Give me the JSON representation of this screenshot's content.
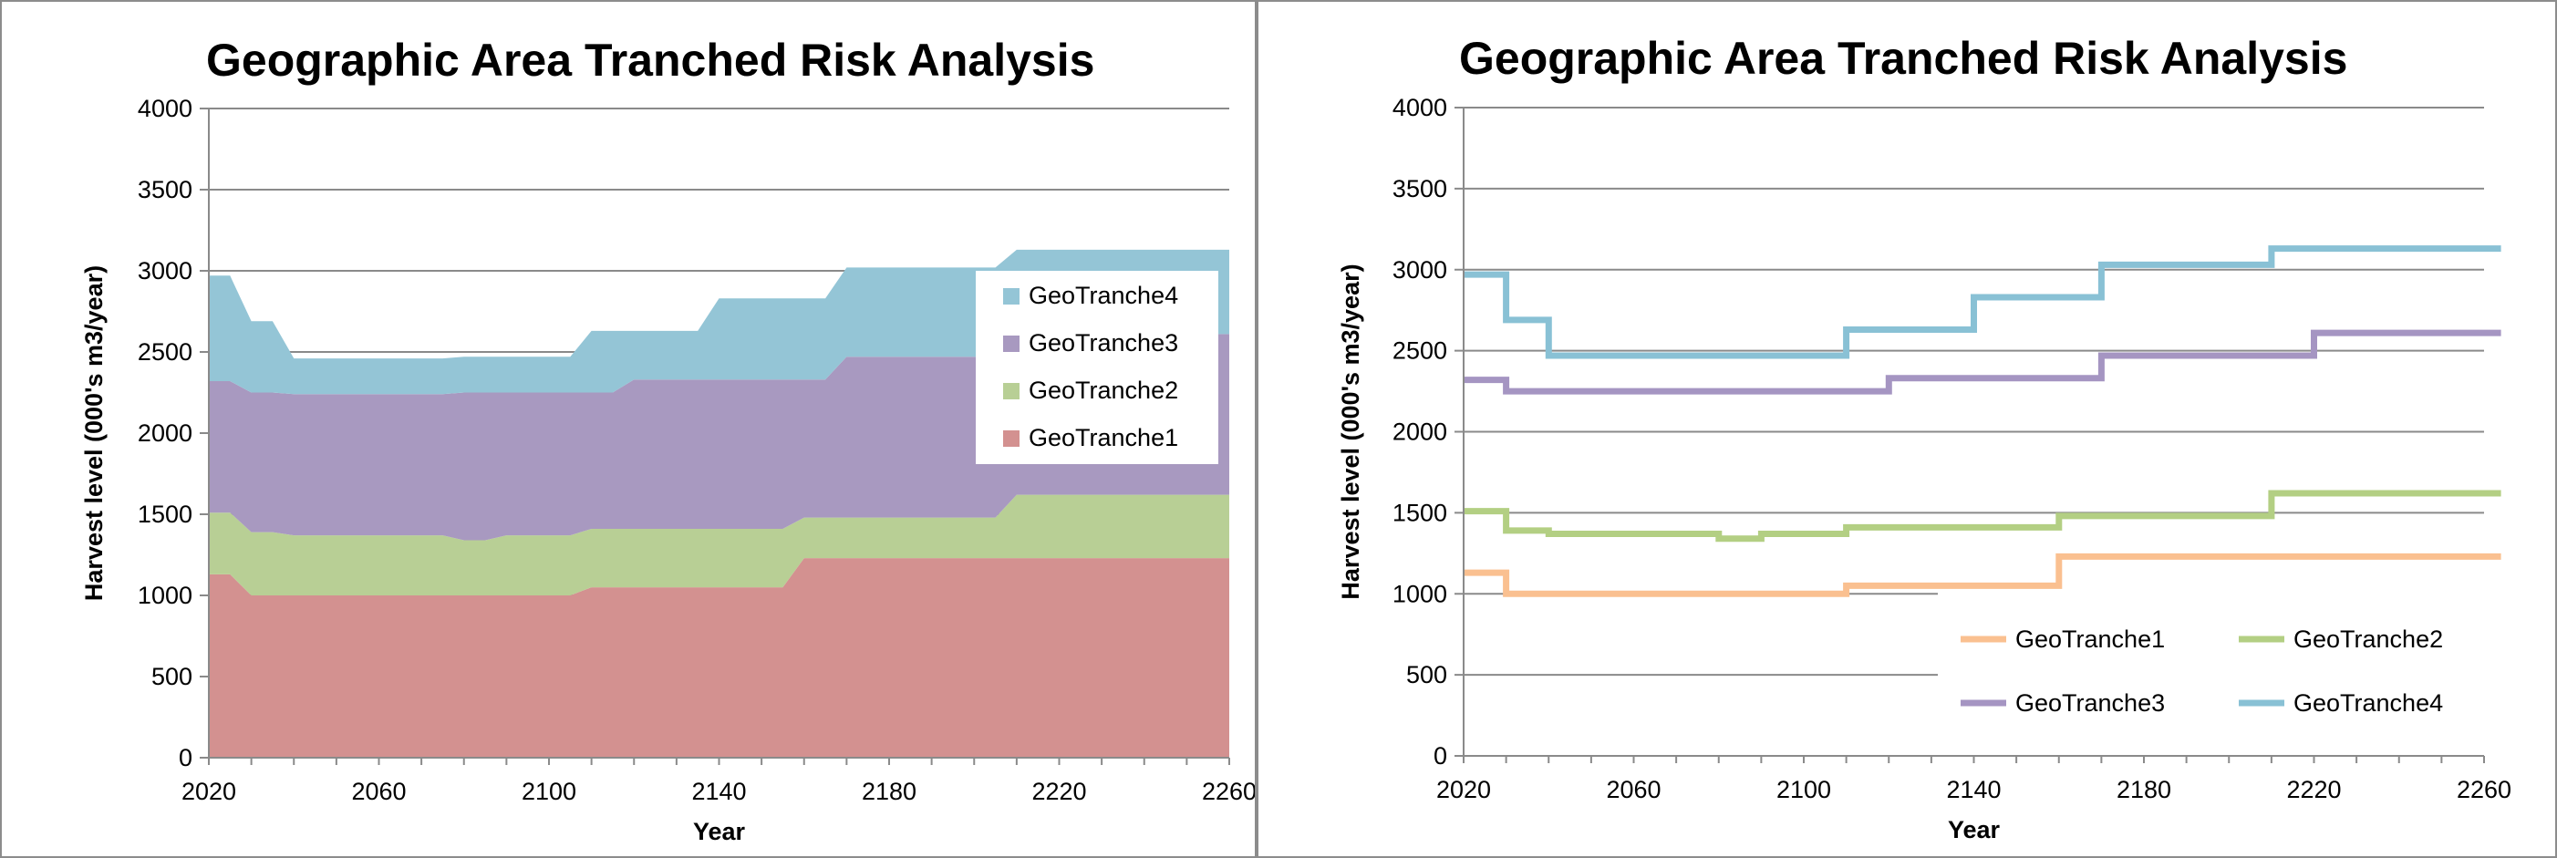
{
  "chart_data": [
    {
      "type": "area",
      "stacked": true,
      "title": "Geographic Area Tranched Risk Analysis",
      "xlabel": "Year",
      "ylabel": "Harvest level (000's m3/year)",
      "xlim": [
        2020,
        2260
      ],
      "ylim": [
        0,
        4000
      ],
      "x_ticks": [
        2020,
        2060,
        2100,
        2140,
        2180,
        2220,
        2260
      ],
      "y_ticks": [
        0,
        500,
        1000,
        1500,
        2000,
        2500,
        3000,
        3500,
        4000
      ],
      "grid": "horizontal",
      "legend": "top-right",
      "x": [
        2020,
        2025,
        2030,
        2035,
        2040,
        2045,
        2050,
        2055,
        2060,
        2065,
        2070,
        2075,
        2080,
        2085,
        2090,
        2095,
        2100,
        2105,
        2110,
        2115,
        2120,
        2125,
        2130,
        2135,
        2140,
        2145,
        2150,
        2155,
        2160,
        2165,
        2170,
        2175,
        2180,
        2185,
        2190,
        2195,
        2200,
        2205,
        2210,
        2215,
        2220,
        2225,
        2230,
        2235,
        2240,
        2245,
        2250,
        2255,
        2260
      ],
      "series": [
        {
          "name": "GeoTranche1",
          "color": "#d39190",
          "values": [
            1130,
            1130,
            1000,
            1000,
            1000,
            1000,
            1000,
            1000,
            1000,
            1000,
            1000,
            1000,
            1000,
            1000,
            1000,
            1000,
            1000,
            1000,
            1050,
            1050,
            1050,
            1050,
            1050,
            1050,
            1050,
            1050,
            1050,
            1050,
            1230,
            1230,
            1230,
            1230,
            1230,
            1230,
            1230,
            1230,
            1230,
            1230,
            1230,
            1230,
            1230,
            1230,
            1230,
            1230,
            1230,
            1230,
            1230,
            1230,
            1230
          ]
        },
        {
          "name": "GeoTranche2",
          "color": "#b8cf95",
          "values": [
            380,
            380,
            390,
            390,
            370,
            370,
            370,
            370,
            370,
            370,
            370,
            370,
            340,
            340,
            370,
            370,
            370,
            370,
            360,
            360,
            360,
            360,
            360,
            360,
            360,
            360,
            360,
            360,
            250,
            250,
            250,
            250,
            250,
            250,
            250,
            250,
            250,
            250,
            390,
            390,
            390,
            390,
            390,
            390,
            390,
            390,
            390,
            390,
            390
          ]
        },
        {
          "name": "GeoTranche3",
          "color": "#a899c0",
          "values": [
            810,
            810,
            860,
            860,
            870,
            870,
            870,
            870,
            870,
            870,
            870,
            870,
            910,
            910,
            880,
            880,
            880,
            880,
            840,
            840,
            920,
            920,
            920,
            920,
            920,
            920,
            920,
            920,
            850,
            850,
            990,
            990,
            990,
            990,
            990,
            990,
            990,
            990,
            860,
            860,
            990,
            990,
            990,
            990,
            990,
            990,
            990,
            990,
            990
          ]
        },
        {
          "name": "GeoTranche4",
          "color": "#94c5d6",
          "values": [
            650,
            650,
            440,
            440,
            220,
            220,
            220,
            220,
            220,
            220,
            220,
            220,
            220,
            220,
            220,
            220,
            220,
            220,
            380,
            380,
            300,
            300,
            300,
            300,
            500,
            500,
            500,
            500,
            500,
            500,
            550,
            550,
            550,
            550,
            550,
            550,
            550,
            550,
            650,
            650,
            520,
            520,
            520,
            520,
            520,
            520,
            520,
            520,
            520
          ]
        }
      ]
    },
    {
      "type": "line",
      "step": true,
      "title": "Geographic Area Tranched Risk Analysis",
      "xlabel": "Year",
      "ylabel": "Harvest level (000's m3/year)",
      "xlim": [
        2020,
        2260
      ],
      "ylim": [
        0,
        4000
      ],
      "x_ticks": [
        2020,
        2060,
        2100,
        2140,
        2180,
        2220,
        2260
      ],
      "y_ticks": [
        0,
        500,
        1000,
        1500,
        2000,
        2500,
        3000,
        3500,
        4000
      ],
      "grid": "horizontal",
      "legend": "bottom-right",
      "series": [
        {
          "name": "GeoTranche1",
          "color": "#fac090",
          "x": [
            2020,
            2030,
            2110,
            2160
          ],
          "values": [
            1130,
            1000,
            1050,
            1230
          ]
        },
        {
          "name": "GeoTranche2",
          "color": "#b3cf83",
          "x": [
            2020,
            2030,
            2040,
            2080,
            2090,
            2110,
            2160,
            2210
          ],
          "values": [
            1510,
            1390,
            1370,
            1340,
            1370,
            1410,
            1480,
            1620
          ]
        },
        {
          "name": "GeoTranche3",
          "color": "#a595c2",
          "x": [
            2020,
            2030,
            2120,
            2170,
            2220
          ],
          "values": [
            2320,
            2250,
            2330,
            2470,
            2610
          ]
        },
        {
          "name": "GeoTranche4",
          "color": "#89c1d5",
          "x": [
            2020,
            2030,
            2040,
            2110,
            2140,
            2170,
            2210
          ],
          "values": [
            2970,
            2690,
            2470,
            2630,
            2830,
            3030,
            3130
          ]
        }
      ]
    }
  ]
}
